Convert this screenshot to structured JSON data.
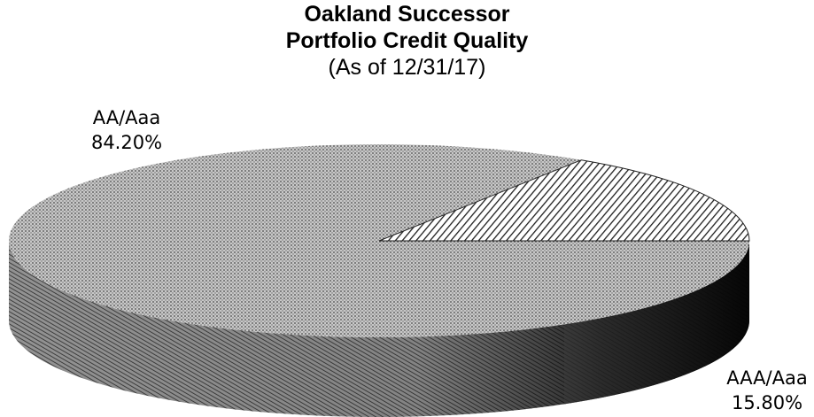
{
  "chart_data": {
    "type": "pie",
    "title": "Oakland Successor",
    "subtitle": "Portfolio Credit Quality",
    "date_note": "(As of 12/31/17)",
    "slices": [
      {
        "label": "AA/Aaa",
        "value_label": "84.20%",
        "value": 84.2
      },
      {
        "label": "AAA/Aaa",
        "value_label": "15.80%",
        "value": 15.8
      }
    ]
  }
}
